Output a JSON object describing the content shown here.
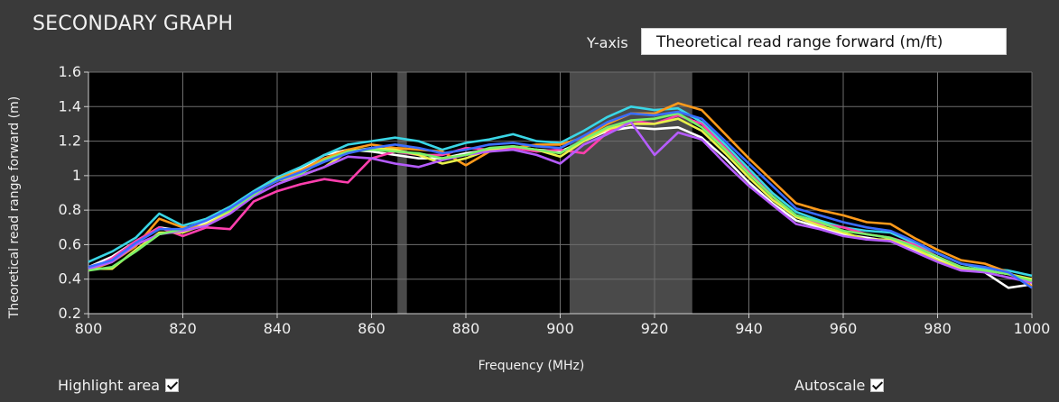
{
  "panel": {
    "title": "SECONDARY GRAPH",
    "yaxis_label": "Y-axis",
    "yaxis_value": "Theoretical read range forward (m/ft)",
    "highlight_label": "Highlight area",
    "highlight_checked": true,
    "autoscale_label": "Autoscale",
    "autoscale_checked": true
  },
  "chart_data": {
    "type": "line",
    "xlabel": "Frequency (MHz)",
    "ylabel": "Theoretical read range forward (m)",
    "xlim": [
      800,
      1000
    ],
    "ylim": [
      0.2,
      1.6
    ],
    "xticks": [
      800,
      820,
      840,
      860,
      880,
      900,
      920,
      940,
      960,
      980,
      1000
    ],
    "yticks": [
      0.2,
      0.4,
      0.6,
      0.8,
      1,
      1.2,
      1.4,
      1.6
    ],
    "ytick_labels": [
      "0.2",
      "0.4",
      "0.6",
      "0.8",
      "1",
      "1.2",
      "1.4",
      "1.6"
    ],
    "grid": true,
    "highlight_bands": [
      [
        865.5,
        867.5
      ],
      [
        902,
        928
      ]
    ],
    "x": [
      800,
      805,
      810,
      815,
      820,
      825,
      830,
      835,
      840,
      845,
      850,
      855,
      860,
      865,
      870,
      875,
      880,
      885,
      890,
      895,
      900,
      905,
      910,
      915,
      920,
      925,
      930,
      935,
      940,
      945,
      950,
      955,
      960,
      965,
      970,
      975,
      980,
      985,
      990,
      995,
      1000
    ],
    "series": [
      {
        "color": "#ffffff",
        "values": [
          0.47,
          0.53,
          0.62,
          0.7,
          0.68,
          0.73,
          0.8,
          0.9,
          0.99,
          1.04,
          1.12,
          1.15,
          1.14,
          1.12,
          1.1,
          1.1,
          1.13,
          1.15,
          1.16,
          1.15,
          1.14,
          1.2,
          1.26,
          1.28,
          1.27,
          1.28,
          1.22,
          1.1,
          0.96,
          0.84,
          0.74,
          0.7,
          0.66,
          0.64,
          0.62,
          0.57,
          0.52,
          0.47,
          0.44,
          0.35,
          0.37
        ]
      },
      {
        "color": "#3ad6e6",
        "values": [
          0.5,
          0.56,
          0.64,
          0.78,
          0.71,
          0.75,
          0.82,
          0.91,
          0.99,
          1.05,
          1.12,
          1.18,
          1.2,
          1.22,
          1.2,
          1.15,
          1.19,
          1.21,
          1.24,
          1.2,
          1.19,
          1.26,
          1.34,
          1.4,
          1.38,
          1.39,
          1.31,
          1.18,
          1.04,
          0.9,
          0.79,
          0.74,
          0.7,
          0.68,
          0.67,
          0.61,
          0.55,
          0.49,
          0.46,
          0.45,
          0.42
        ]
      },
      {
        "color": "#ff9a1a",
        "values": [
          0.45,
          0.5,
          0.59,
          0.75,
          0.7,
          0.71,
          0.79,
          0.89,
          0.98,
          1.03,
          1.1,
          1.15,
          1.18,
          1.16,
          1.15,
          1.14,
          1.06,
          1.14,
          1.16,
          1.18,
          1.18,
          1.22,
          1.3,
          1.36,
          1.36,
          1.42,
          1.38,
          1.24,
          1.1,
          0.97,
          0.84,
          0.8,
          0.77,
          0.73,
          0.72,
          0.64,
          0.57,
          0.51,
          0.49,
          0.44,
          0.36
        ]
      },
      {
        "color": "#ff3fae",
        "values": [
          0.45,
          0.52,
          0.62,
          0.7,
          0.65,
          0.7,
          0.69,
          0.85,
          0.91,
          0.95,
          0.98,
          0.96,
          1.1,
          1.14,
          1.12,
          1.12,
          1.16,
          1.15,
          1.16,
          1.14,
          1.15,
          1.13,
          1.25,
          1.32,
          1.3,
          1.35,
          1.3,
          1.16,
          1.02,
          0.88,
          0.76,
          0.72,
          0.7,
          0.66,
          0.64,
          0.6,
          0.53,
          0.47,
          0.45,
          0.43,
          0.38
        ]
      },
      {
        "color": "#e8f04a",
        "values": [
          0.46,
          0.46,
          0.57,
          0.67,
          0.67,
          0.72,
          0.79,
          0.9,
          0.97,
          1.0,
          1.05,
          1.14,
          1.16,
          1.15,
          1.12,
          1.07,
          1.1,
          1.15,
          1.17,
          1.15,
          1.11,
          1.2,
          1.27,
          1.3,
          1.3,
          1.33,
          1.26,
          1.13,
          0.99,
          0.86,
          0.76,
          0.71,
          0.67,
          0.63,
          0.63,
          0.58,
          0.51,
          0.46,
          0.45,
          0.43,
          0.4
        ]
      },
      {
        "color": "#b65cff",
        "values": [
          0.46,
          0.5,
          0.6,
          0.66,
          0.68,
          0.71,
          0.78,
          0.88,
          0.95,
          1.0,
          1.05,
          1.11,
          1.1,
          1.07,
          1.05,
          1.09,
          1.12,
          1.14,
          1.15,
          1.12,
          1.07,
          1.18,
          1.24,
          1.31,
          1.12,
          1.25,
          1.21,
          1.07,
          0.94,
          0.83,
          0.72,
          0.69,
          0.65,
          0.63,
          0.62,
          0.56,
          0.5,
          0.45,
          0.44,
          0.41,
          0.38
        ]
      },
      {
        "color": "#7bf06a",
        "values": [
          0.45,
          0.47,
          0.56,
          0.66,
          0.69,
          0.74,
          0.8,
          0.89,
          0.98,
          1.01,
          1.09,
          1.14,
          1.15,
          1.14,
          1.13,
          1.1,
          1.12,
          1.16,
          1.17,
          1.15,
          1.13,
          1.21,
          1.28,
          1.32,
          1.33,
          1.36,
          1.28,
          1.15,
          1.01,
          0.88,
          0.77,
          0.73,
          0.68,
          0.66,
          0.64,
          0.59,
          0.53,
          0.47,
          0.45,
          0.43,
          0.39
        ]
      },
      {
        "color": "#3a6dff",
        "values": [
          0.47,
          0.51,
          0.61,
          0.69,
          0.69,
          0.74,
          0.81,
          0.9,
          0.97,
          1.02,
          1.08,
          1.13,
          1.16,
          1.18,
          1.16,
          1.13,
          1.15,
          1.18,
          1.19,
          1.17,
          1.16,
          1.23,
          1.31,
          1.36,
          1.35,
          1.37,
          1.33,
          1.2,
          1.07,
          0.94,
          0.81,
          0.77,
          0.73,
          0.7,
          0.68,
          0.62,
          0.55,
          0.49,
          0.47,
          0.44,
          0.35
        ]
      }
    ]
  }
}
